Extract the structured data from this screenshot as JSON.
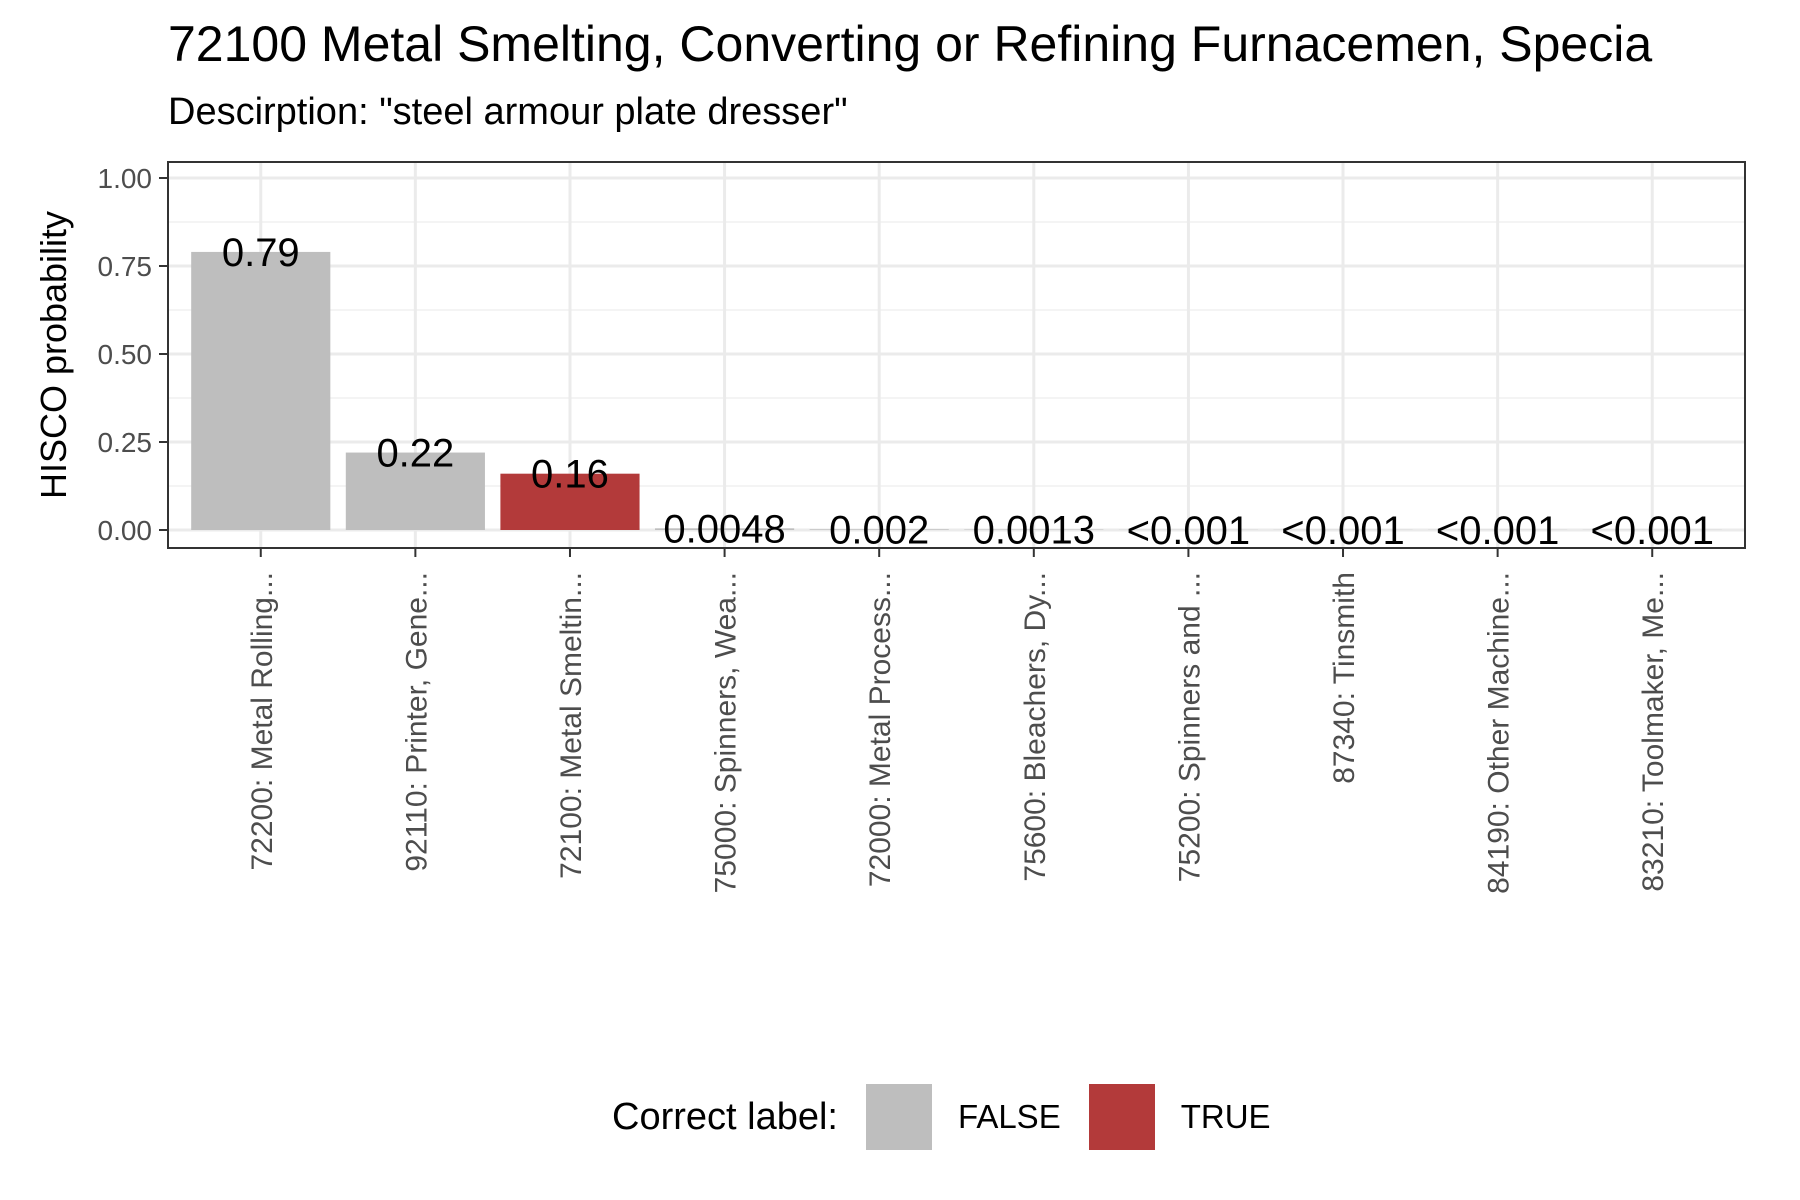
{
  "chart_data": {
    "type": "bar",
    "title": "72100 Metal Smelting, Converting or Refining Furnacemen, Specia",
    "subtitle": "Descirption: \"steel armour plate dresser\"",
    "xlabel": "",
    "ylabel": "HISCO probability",
    "ylim": [
      0,
      1.05
    ],
    "yticks": [
      "0.00",
      "0.25",
      "0.50",
      "0.75",
      "1.00"
    ],
    "grid": true,
    "legend_position": "bottom",
    "categories": [
      "72200: Metal Rolling...",
      "92110: Printer, Gene...",
      "72100: Metal Smeltin...",
      "75000: Spinners, Wea...",
      "72000: Metal Process...",
      "75600: Bleachers, Dy...",
      "75200: Spinners and ...",
      "87340: Tinsmith",
      "84190: Other Machine...",
      "83210: Toolmaker, Me..."
    ],
    "values": [
      0.79,
      0.22,
      0.16,
      0.0048,
      0.002,
      0.0013,
      0.0005,
      0.0005,
      0.0005,
      0.0005
    ],
    "value_labels": [
      "0.79",
      "0.22",
      "0.16",
      "0.0048",
      "0.002",
      "0.0013",
      "<0.001",
      "<0.001",
      "<0.001",
      "<0.001"
    ],
    "correct": [
      false,
      false,
      true,
      false,
      false,
      false,
      false,
      false,
      false,
      false
    ],
    "legend": {
      "title": "Correct label:",
      "items": [
        {
          "label": "FALSE",
          "color": "#bebebe"
        },
        {
          "label": "TRUE",
          "color": "#b33a3a"
        }
      ]
    }
  }
}
